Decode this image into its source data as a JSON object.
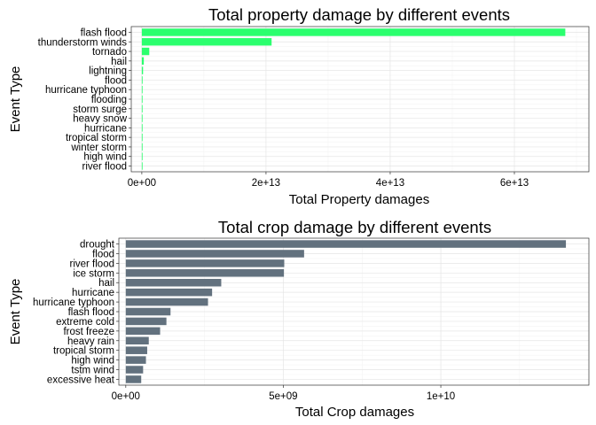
{
  "chart_data": [
    {
      "type": "bar",
      "orientation": "horizontal",
      "title": "Total property damage by different events",
      "xlabel": "Total Property damages",
      "ylabel": "Event Type",
      "bar_color": "#2bff6e",
      "grid": true,
      "xlim": [
        -1700000000000.0,
        72000000000000.0
      ],
      "xticks": [
        0,
        20000000000000.0,
        40000000000000.0,
        60000000000000.0
      ],
      "xtick_labels": [
        "0e+00",
        "2e+13",
        "4e+13",
        "6e+13"
      ],
      "categories": [
        "flash flood",
        "thunderstorm winds",
        "tornado",
        "hail",
        "lightning",
        "flood",
        "hurricane typhoon",
        "flooding",
        "storm surge",
        "heavy snow",
        "hurricane",
        "tropical storm",
        "winter storm",
        "high wind",
        "river flood"
      ],
      "values": [
        68200000000000.0,
        20900000000000.0,
        1200000000000.0,
        320000000000.0,
        200000000000.0,
        120000000000.0,
        80000000000.0,
        50000000000.0,
        40000000000.0,
        2000000000.0,
        1000000000.0,
        1000000000.0,
        1000000000.0,
        500000000.0,
        500000000.0
      ]
    },
    {
      "type": "bar",
      "orientation": "horizontal",
      "title": "Total crop damage by different events",
      "xlabel": "Total Crop damages",
      "ylabel": "Event Type",
      "bar_color": "#62717e",
      "grid": true,
      "xlim": [
        -220000000.0,
        14700000000.0
      ],
      "xticks": [
        0,
        5000000000.0,
        10000000000.0
      ],
      "xtick_labels": [
        "0e+00",
        "5e+09",
        "1e+10"
      ],
      "categories": [
        "drought",
        "flood",
        "river flood",
        "ice storm",
        "hail",
        "hurricane",
        "hurricane typhoon",
        "flash flood",
        "extreme cold",
        "frost freeze",
        "heavy rain",
        "tropical storm",
        "high wind",
        "tstm wind",
        "excessive heat"
      ],
      "values": [
        13970000000.0,
        5660000000.0,
        5030000000.0,
        5020000000.0,
        3030000000.0,
        2740000000.0,
        2610000000.0,
        1420000000.0,
        1290000000.0,
        1090000000.0,
        730000000.0,
        680000000.0,
        640000000.0,
        550000000.0,
        490000000.0
      ]
    }
  ]
}
